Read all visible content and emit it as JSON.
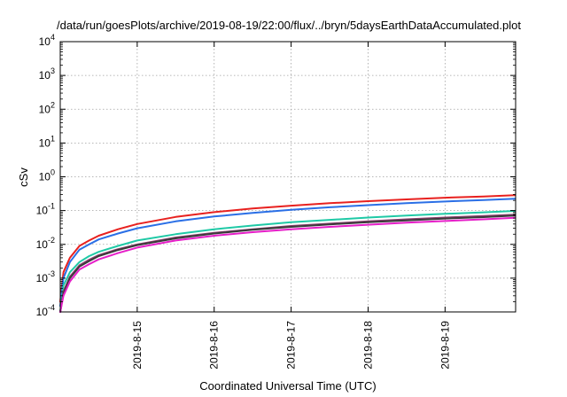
{
  "chart_data": {
    "type": "line",
    "title": "/data/run/goesPlots/archive/2019-08-19/22:00/flux/../bryn/5daysEarthDataAccumulated.plot",
    "xlabel": "Coordinated Universal Time (UTC)",
    "ylabel": "cSv",
    "yscale": "log",
    "ylim": [
      0.0001,
      10000
    ],
    "xlim": [
      "2019-08-14 00:00",
      "2019-08-19 22:00"
    ],
    "grid": true,
    "y_ticks": [
      {
        "base": "10",
        "exp": "-4"
      },
      {
        "base": "10",
        "exp": "-3"
      },
      {
        "base": "10",
        "exp": "-2"
      },
      {
        "base": "10",
        "exp": "-1"
      },
      {
        "base": "10",
        "exp": "0"
      },
      {
        "base": "10",
        "exp": "1"
      },
      {
        "base": "10",
        "exp": "2"
      },
      {
        "base": "10",
        "exp": "3"
      },
      {
        "base": "10",
        "exp": "4"
      }
    ],
    "x_ticks": [
      {
        "label": "2019-8-15",
        "date": "2019-08-15 00:00"
      },
      {
        "label": "2019-8-16",
        "date": "2019-08-16 00:00"
      },
      {
        "label": "2019-8-17",
        "date": "2019-08-17 00:00"
      },
      {
        "label": "2019-8-18",
        "date": "2019-08-18 00:00"
      },
      {
        "label": "2019-8-19",
        "date": "2019-08-19 00:00"
      }
    ],
    "x": [
      "2019-08-14 00:00",
      "2019-08-14 01:00",
      "2019-08-14 03:00",
      "2019-08-14 06:00",
      "2019-08-14 09:00",
      "2019-08-14 12:00",
      "2019-08-14 18:00",
      "2019-08-15 00:00",
      "2019-08-15 12:00",
      "2019-08-16 00:00",
      "2019-08-16 12:00",
      "2019-08-17 00:00",
      "2019-08-17 12:00",
      "2019-08-18 00:00",
      "2019-08-18 12:00",
      "2019-08-19 00:00",
      "2019-08-19 12:00",
      "2019-08-19 22:00"
    ],
    "series": [
      {
        "color": "#e8211f",
        "values": [
          0.0002,
          0.0015,
          0.004,
          0.009,
          0.013,
          0.018,
          0.028,
          0.04,
          0.065,
          0.09,
          0.115,
          0.14,
          0.165,
          0.19,
          0.215,
          0.24,
          0.262,
          0.285
        ]
      },
      {
        "color": "#2a6fe6",
        "values": [
          0.00015,
          0.001,
          0.003,
          0.007,
          0.01,
          0.014,
          0.021,
          0.03,
          0.048,
          0.067,
          0.085,
          0.105,
          0.125,
          0.145,
          0.165,
          0.185,
          0.205,
          0.225
        ]
      },
      {
        "color": "#1fc9a6",
        "values": [
          0.0001,
          0.0006,
          0.0015,
          0.003,
          0.0045,
          0.006,
          0.009,
          0.013,
          0.02,
          0.028,
          0.036,
          0.045,
          0.053,
          0.062,
          0.071,
          0.08,
          0.089,
          0.098
        ]
      },
      {
        "color": "#8a3f6e",
        "values": [
          0.0001,
          0.0004,
          0.0011,
          0.0024,
          0.0035,
          0.0048,
          0.0072,
          0.01,
          0.016,
          0.022,
          0.028,
          0.035,
          0.041,
          0.048,
          0.055,
          0.062,
          0.069,
          0.076
        ]
      },
      {
        "color": "#3a3a3a",
        "values": [
          0.0001,
          0.00035,
          0.001,
          0.0022,
          0.0032,
          0.0045,
          0.0068,
          0.0095,
          0.015,
          0.021,
          0.027,
          0.033,
          0.039,
          0.045,
          0.051,
          0.058,
          0.064,
          0.071
        ]
      },
      {
        "color": "#e61ec8",
        "values": [
          0.0001,
          0.0003,
          0.0008,
          0.0018,
          0.0026,
          0.0036,
          0.0055,
          0.008,
          0.013,
          0.018,
          0.023,
          0.028,
          0.033,
          0.038,
          0.044,
          0.049,
          0.055,
          0.061
        ]
      }
    ]
  }
}
